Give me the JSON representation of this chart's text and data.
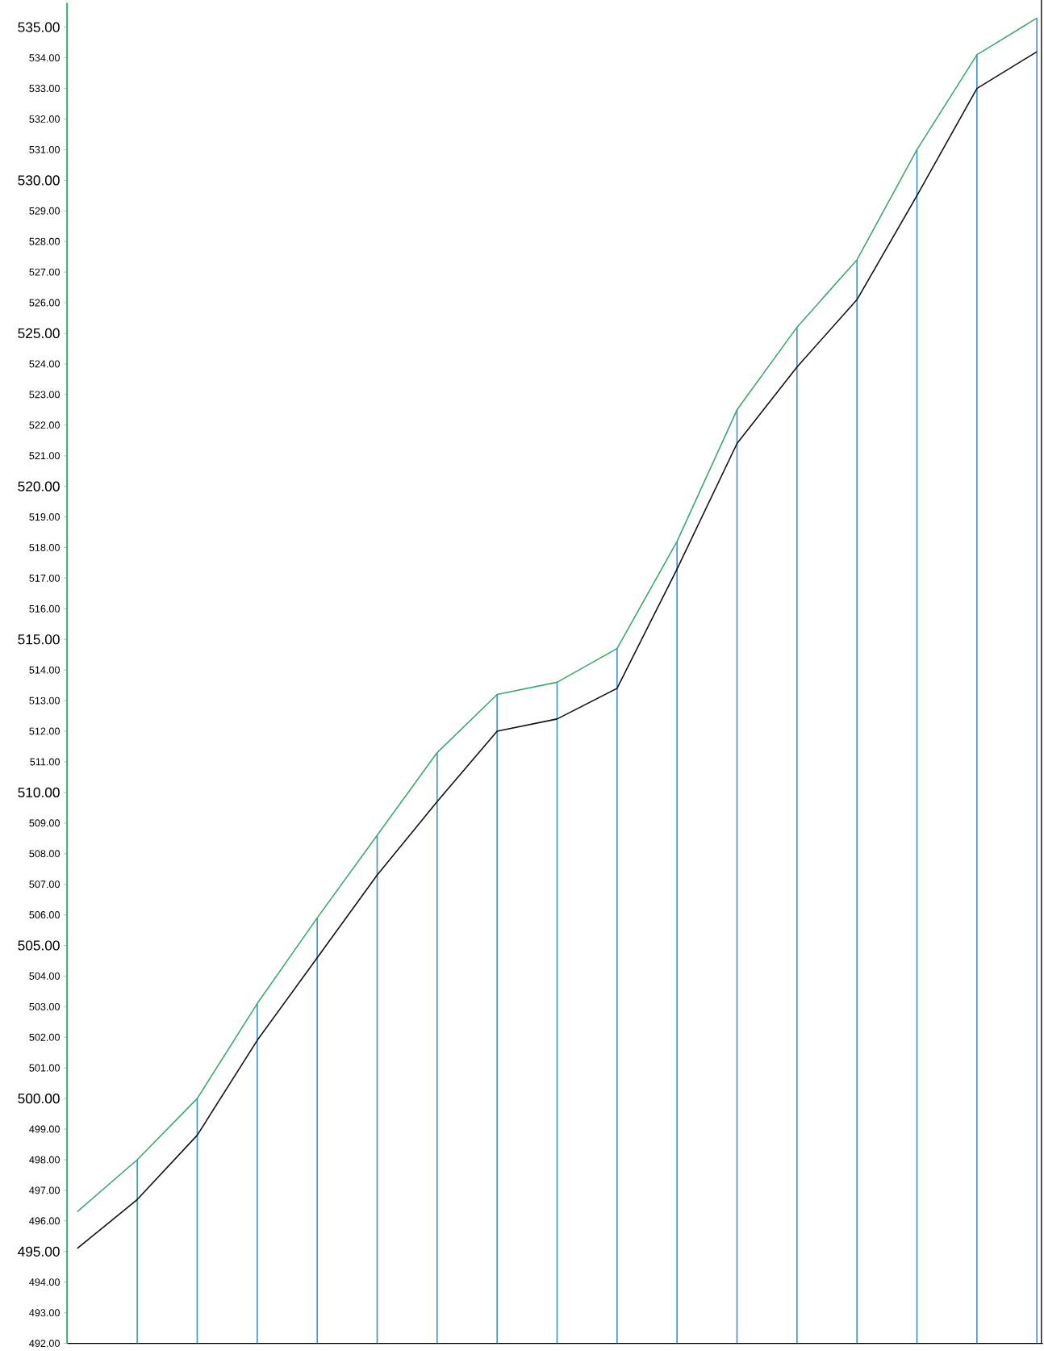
{
  "chart_data": {
    "type": "line",
    "categories": [
      null,
      null,
      null,
      null,
      null,
      null,
      null,
      null,
      null,
      null,
      null,
      null,
      null,
      null,
      null,
      null,
      null
    ],
    "ylim": [
      492,
      535.8
    ],
    "tick_labels": "y",
    "grid": false,
    "marker": "none",
    "yticks": [
      {
        "value": 492,
        "label": "492.00"
      },
      {
        "value": 493,
        "label": "493.00"
      },
      {
        "value": 494,
        "label": "494.00"
      },
      {
        "value": 495,
        "label": "495.00"
      },
      {
        "value": 496,
        "label": "496.00"
      },
      {
        "value": 497,
        "label": "497.00"
      },
      {
        "value": 498,
        "label": "498.00"
      },
      {
        "value": 499,
        "label": "499.00"
      },
      {
        "value": 500,
        "label": "500.00"
      },
      {
        "value": 501,
        "label": "501.00"
      },
      {
        "value": 502,
        "label": "502.00"
      },
      {
        "value": 503,
        "label": "503.00"
      },
      {
        "value": 504,
        "label": "504.00"
      },
      {
        "value": 505,
        "label": "505.00"
      },
      {
        "value": 506,
        "label": "506.00"
      },
      {
        "value": 507,
        "label": "507.00"
      },
      {
        "value": 508,
        "label": "508.00"
      },
      {
        "value": 509,
        "label": "509.00"
      },
      {
        "value": 510,
        "label": "510.00"
      },
      {
        "value": 511,
        "label": "511.00"
      },
      {
        "value": 512,
        "label": "512.00"
      },
      {
        "value": 513,
        "label": "513.00"
      },
      {
        "value": 514,
        "label": "514.00"
      },
      {
        "value": 515,
        "label": "515.00"
      },
      {
        "value": 516,
        "label": "516.00"
      },
      {
        "value": 517,
        "label": "517.00"
      },
      {
        "value": 518,
        "label": "518.00"
      },
      {
        "value": 519,
        "label": "519.00"
      },
      {
        "value": 520,
        "label": "520.00"
      },
      {
        "value": 521,
        "label": "521.00"
      },
      {
        "value": 522,
        "label": "522.00"
      },
      {
        "value": 523,
        "label": "523.00"
      },
      {
        "value": 524,
        "label": "524.00"
      },
      {
        "value": 525,
        "label": "525.00"
      },
      {
        "value": 526,
        "label": "526.00"
      },
      {
        "value": 527,
        "label": "527.00"
      },
      {
        "value": 528,
        "label": "528.00"
      },
      {
        "value": 529,
        "label": "529.00"
      },
      {
        "value": 530,
        "label": "530.00"
      },
      {
        "value": 531,
        "label": "531.00"
      },
      {
        "value": 532,
        "label": "532.00"
      },
      {
        "value": 533,
        "label": "533.00"
      },
      {
        "value": 534,
        "label": "534.00"
      },
      {
        "value": 535,
        "label": "535.00"
      }
    ],
    "series": [
      {
        "type": "bar",
        "color": "#3a8fd6",
        "values": [
          null,
          498.0,
          500.0,
          503.1,
          505.9,
          508.6,
          511.3,
          513.2,
          513.6,
          514.7,
          518.2,
          522.5,
          525.2,
          527.4,
          531.0,
          534.1,
          535.3
        ]
      },
      {
        "type": "line",
        "color": "#3aaa6a",
        "values": [
          496.3,
          498.0,
          500.0,
          503.1,
          505.9,
          508.6,
          511.3,
          513.2,
          513.6,
          514.7,
          518.2,
          522.5,
          525.2,
          527.4,
          531.0,
          534.1,
          535.3
        ]
      },
      {
        "type": "line",
        "color": "#111111",
        "values": [
          495.1,
          496.7,
          498.8,
          501.9,
          504.6,
          507.3,
          509.7,
          512.0,
          512.4,
          513.4,
          517.3,
          521.4,
          523.9,
          526.1,
          529.5,
          533.0,
          534.2
        ]
      }
    ]
  }
}
